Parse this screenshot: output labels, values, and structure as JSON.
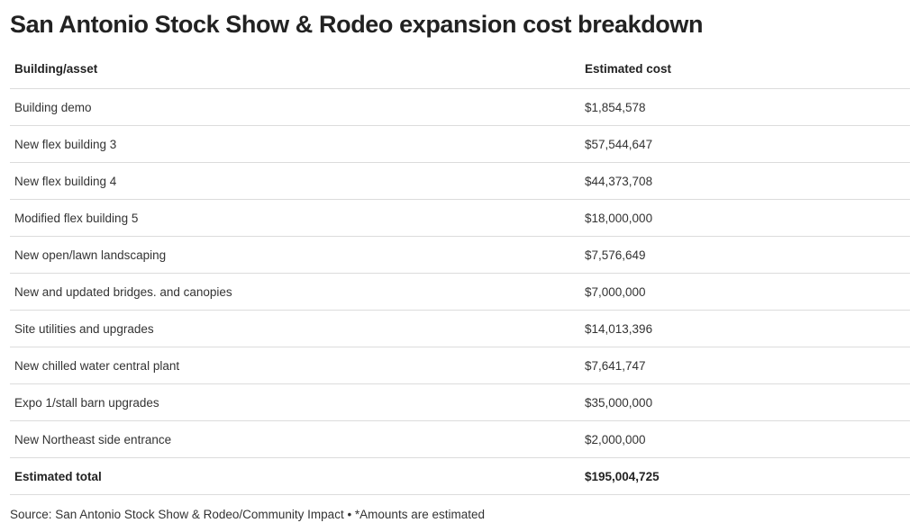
{
  "chart_data": {
    "type": "table",
    "title": "San Antonio Stock Show & Rodeo expansion cost breakdown",
    "columns": [
      "Building/asset",
      "Estimated cost"
    ],
    "rows": [
      {
        "name": "Building demo",
        "cost": "$1,854,578",
        "value": 1854578
      },
      {
        "name": "New flex building 3",
        "cost": "$57,544,647",
        "value": 57544647
      },
      {
        "name": "New flex building 4",
        "cost": "$44,373,708",
        "value": 44373708
      },
      {
        "name": "Modified flex building 5",
        "cost": "$18,000,000",
        "value": 18000000
      },
      {
        "name": "New open/lawn landscaping",
        "cost": "$7,576,649",
        "value": 7576649
      },
      {
        "name": "New and updated bridges. and canopies",
        "cost": "$7,000,000",
        "value": 7000000
      },
      {
        "name": "Site utilities and upgrades",
        "cost": "$14,013,396",
        "value": 14013396
      },
      {
        "name": "New chilled water central plant",
        "cost": "$7,641,747",
        "value": 7641747
      },
      {
        "name": "Expo 1/stall barn upgrades",
        "cost": "$35,000,000",
        "value": 35000000
      },
      {
        "name": "New Northeast side entrance",
        "cost": "$2,000,000",
        "value": 2000000
      }
    ],
    "total": {
      "name": "Estimated total",
      "cost": "$195,004,725",
      "value": 195004725
    },
    "source": "Source: San Antonio Stock Show & Rodeo/Community Impact • *Amounts are estimated"
  }
}
